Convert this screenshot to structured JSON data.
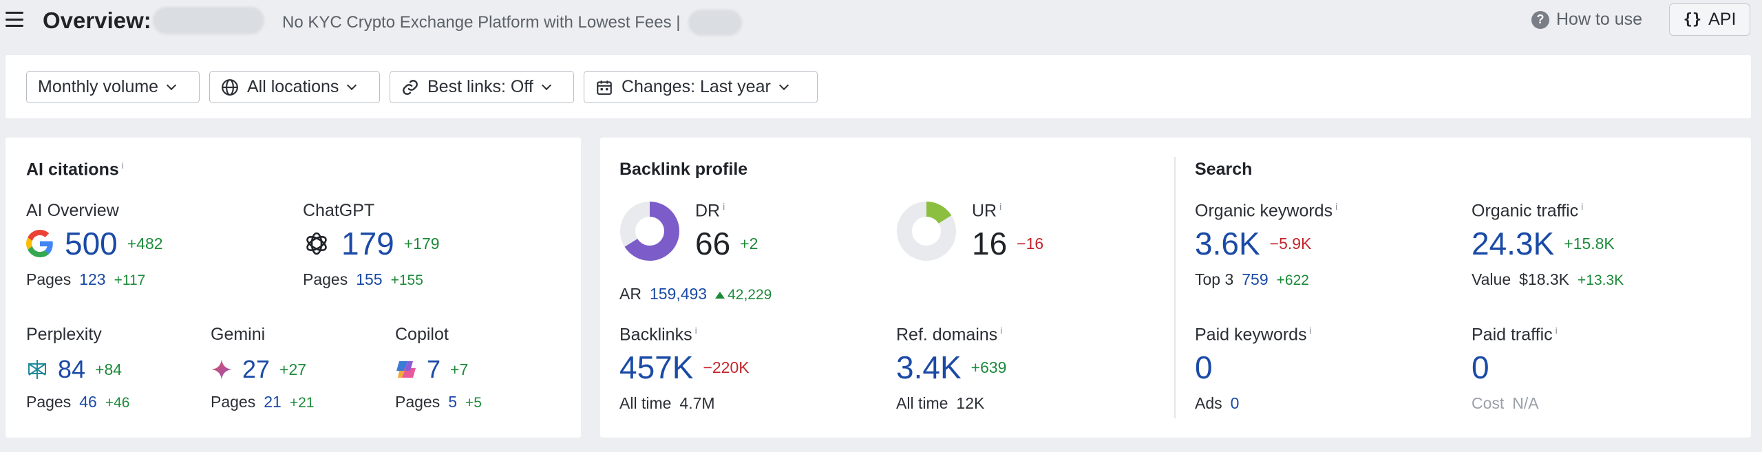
{
  "header": {
    "title": "Overview:",
    "subtitle": "No KYC Crypto Exchange Platform with Lowest Fees |",
    "how_to_use": "How to use",
    "api_label": "API",
    "api_icon": "{}"
  },
  "filters": [
    {
      "label": "Monthly volume"
    },
    {
      "label": "All locations",
      "icon": "globe-icon"
    },
    {
      "label": "Best links: Off",
      "icon": "link-icon"
    },
    {
      "label": "Changes: Last year",
      "icon": "calendar-icon"
    }
  ],
  "ai_citations": {
    "title": "AI citations",
    "info": "i",
    "ai_overview": {
      "label": "AI Overview",
      "value": "500",
      "delta": "+482",
      "pages_label": "Pages",
      "pages": "123",
      "pages_delta": "+117"
    },
    "chatgpt": {
      "label": "ChatGPT",
      "value": "179",
      "delta": "+179",
      "pages_label": "Pages",
      "pages": "155",
      "pages_delta": "+155"
    },
    "perplexity": {
      "label": "Perplexity",
      "value": "84",
      "delta": "+84",
      "pages_label": "Pages",
      "pages": "46",
      "pages_delta": "+46"
    },
    "gemini": {
      "label": "Gemini",
      "value": "27",
      "delta": "+27",
      "pages_label": "Pages",
      "pages": "21",
      "pages_delta": "+21"
    },
    "copilot": {
      "label": "Copilot",
      "value": "7",
      "delta": "+7",
      "pages_label": "Pages",
      "pages": "5",
      "pages_delta": "+5"
    }
  },
  "backlink_profile": {
    "title": "Backlink profile",
    "dr": {
      "label": "DR",
      "info": "i",
      "value": "66",
      "delta": "+2",
      "ar_label": "AR",
      "ar": "159,493",
      "ar_delta": "42,229",
      "fill": 0.66,
      "color": "#7b5cc9"
    },
    "ur": {
      "label": "UR",
      "info": "i",
      "value": "16",
      "delta": "−16",
      "fill": 0.16,
      "color": "#8cbf3f"
    },
    "backlinks": {
      "label": "Backlinks",
      "info": "i",
      "value": "457K",
      "delta": "−220K",
      "sub_label": "All time",
      "sub_value": "4.7M"
    },
    "ref_domains": {
      "label": "Ref. domains",
      "info": "i",
      "value": "3.4K",
      "delta": "+639",
      "sub_label": "All time",
      "sub_value": "12K"
    }
  },
  "search": {
    "title": "Search",
    "organic_keywords": {
      "label": "Organic keywords",
      "info": "i",
      "value": "3.6K",
      "delta": "−5.9K",
      "sub_label": "Top 3",
      "sub_value": "759",
      "sub_delta": "+622"
    },
    "organic_traffic": {
      "label": "Organic traffic",
      "info": "i",
      "value": "24.3K",
      "delta": "+15.8K",
      "sub_label": "Value",
      "sub_value": "$18.3K",
      "sub_delta": "+13.3K"
    },
    "paid_keywords": {
      "label": "Paid keywords",
      "info": "i",
      "value": "0",
      "sub_label": "Ads",
      "sub_value": "0"
    },
    "paid_traffic": {
      "label": "Paid traffic",
      "info": "i",
      "value": "0",
      "sub_label": "Cost",
      "sub_value": "N/A"
    }
  },
  "colors": {
    "link_blue": "#1a4aa6",
    "positive": "#1c8a3a",
    "negative": "#c3262b"
  }
}
